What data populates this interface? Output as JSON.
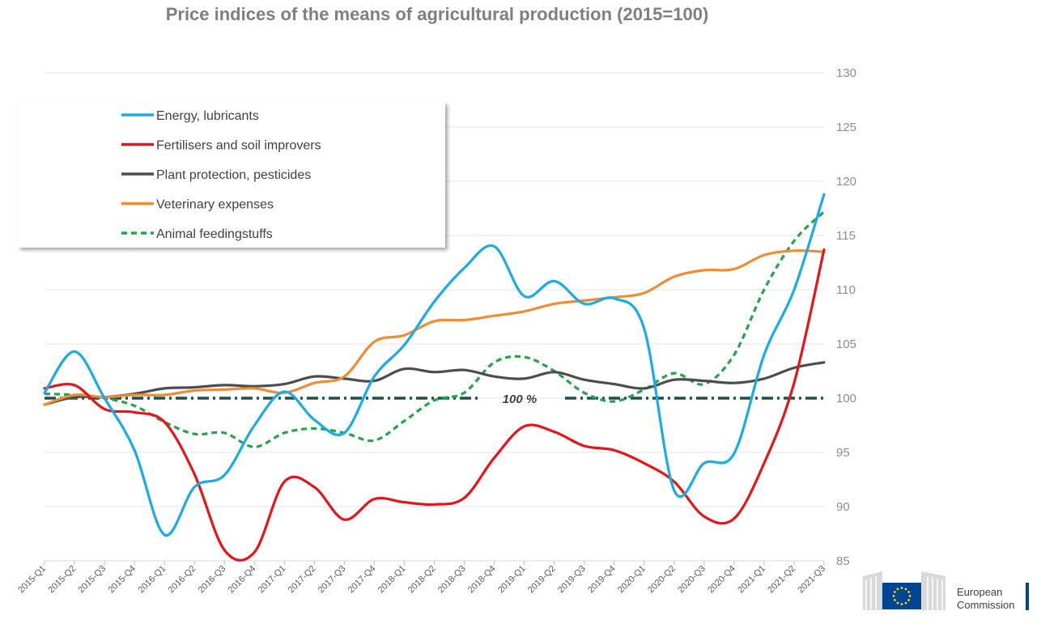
{
  "chart_data": {
    "type": "line",
    "title": "Price indices of the means of agricultural production (2015=100)",
    "xlabel": "",
    "ylabel": "",
    "ylim": [
      85,
      130
    ],
    "yticks": [
      85,
      90,
      95,
      100,
      105,
      110,
      115,
      120,
      125,
      130
    ],
    "y_axis_position": "right",
    "grid": true,
    "legend_position": "top-left",
    "categories": [
      "2015-Q1",
      "2015-Q2",
      "2015-Q3",
      "2015-Q4",
      "2016-Q1",
      "2016-Q2",
      "2016-Q3",
      "2016-Q4",
      "2017-Q1",
      "2017-Q2",
      "2017-Q3",
      "2017-Q4",
      "2018-Q1",
      "2018-Q2",
      "2018-Q3",
      "2018-Q4",
      "2019-Q1",
      "2019-Q2",
      "2019-Q3",
      "2019-Q4",
      "2020-Q1",
      "2020-Q2",
      "2020-Q3",
      "2020-Q4",
      "2021-Q1",
      "2021-Q2",
      "2021-Q3"
    ],
    "series": [
      {
        "name": "Energy, lubricants",
        "color": "#1aace6",
        "dash": "solid",
        "values": [
          100.5,
          104.3,
          100.0,
          95.2,
          87.4,
          91.8,
          92.9,
          97.5,
          100.6,
          98.0,
          96.8,
          102.0,
          104.9,
          108.9,
          112.0,
          114.0,
          109.4,
          110.8,
          108.7,
          109.2,
          106.4,
          91.5,
          94.0,
          94.9,
          104.0,
          110.0,
          118.8
        ]
      },
      {
        "name": "Fertilisers and soil improvers",
        "color": "#e8141a",
        "dash": "solid",
        "values": [
          100.9,
          101.2,
          99.0,
          98.7,
          97.8,
          93.0,
          86.0,
          85.8,
          92.3,
          91.8,
          88.8,
          90.7,
          90.4,
          90.2,
          90.8,
          94.5,
          97.4,
          96.9,
          95.6,
          95.2,
          94.0,
          92.3,
          89.1,
          88.9,
          94.0,
          101.4,
          113.7
        ]
      },
      {
        "name": "Plant protection, pesticides",
        "color": "#4d4d4d",
        "dash": "solid",
        "values": [
          99.4,
          100.1,
          100.1,
          100.4,
          100.9,
          101.0,
          101.2,
          101.1,
          101.3,
          102.0,
          101.8,
          101.6,
          102.7,
          102.4,
          102.6,
          102.0,
          101.8,
          102.4,
          101.7,
          101.3,
          100.9,
          101.7,
          101.6,
          101.4,
          101.8,
          102.8,
          103.3
        ]
      },
      {
        "name": "Veterinary expenses",
        "color": "#f08c32",
        "dash": "solid",
        "values": [
          99.4,
          100.3,
          100.1,
          100.3,
          100.3,
          100.7,
          100.8,
          100.9,
          100.5,
          101.4,
          102.0,
          105.2,
          105.8,
          107.1,
          107.2,
          107.6,
          108.0,
          108.7,
          109.0,
          109.3,
          109.7,
          111.2,
          111.8,
          111.9,
          113.2,
          113.6,
          113.5
        ]
      },
      {
        "name": "Animal feedingstuffs",
        "color": "#22a64a",
        "dash": "dashed",
        "values": [
          100.4,
          100.3,
          100.0,
          99.3,
          97.8,
          96.7,
          96.8,
          95.5,
          96.8,
          97.2,
          96.8,
          96.1,
          97.9,
          99.8,
          100.5,
          103.3,
          103.8,
          102.5,
          100.5,
          99.7,
          100.8,
          102.3,
          101.3,
          104.0,
          110.0,
          114.5,
          117.2
        ]
      }
    ],
    "reference_line": {
      "value": 100,
      "label": "100 %",
      "color": "#1f4e4e"
    },
    "legend_entries": [
      "Energy, lubricants",
      "Fertilisers and soil improvers",
      "Plant protection, pesticides",
      "Veterinary expenses",
      "Animal feedingstuffs"
    ]
  },
  "logo": {
    "line1": "European",
    "line2": "Commission",
    "flag_color": "#004494",
    "star_color": "#ffdd00"
  }
}
